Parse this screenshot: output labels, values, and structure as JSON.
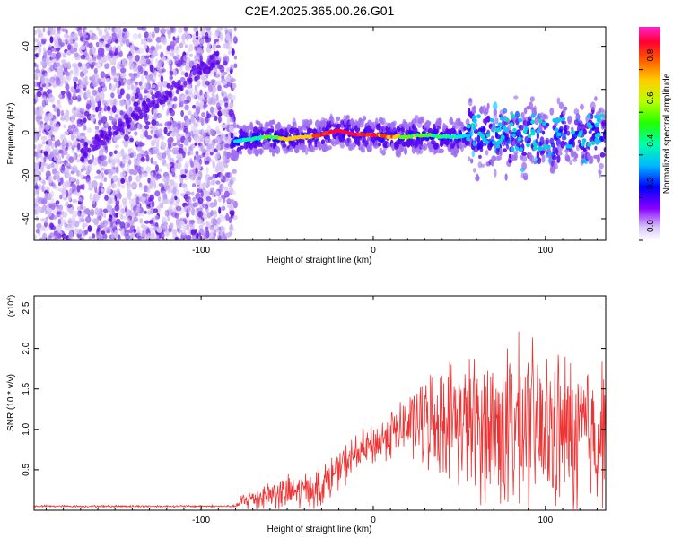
{
  "title": "C2E4.2025.365.00.26.G01",
  "chart_data": [
    {
      "type": "heatmap",
      "xlabel": "Height of straight line (km)",
      "ylabel": "Frequency (Hz)",
      "xlim": [
        -197,
        135
      ],
      "ylim": [
        -50,
        49
      ],
      "xticks": [
        -100,
        0,
        100
      ],
      "yticks": [
        -40,
        -20,
        0,
        20,
        40
      ],
      "colorbar": {
        "label": "Normalized spectral amplitude",
        "ticks": [
          "0.0",
          "0.2",
          "0.4",
          "0.6",
          "0.8"
        ],
        "range": [
          0,
          1
        ]
      },
      "ridge": {
        "x": [
          -80,
          -70,
          -60,
          -50,
          -40,
          -30,
          -20,
          -10,
          0,
          10,
          20,
          30,
          40,
          50,
          55
        ],
        "freq": [
          -4,
          -3,
          -2,
          -3,
          -2,
          -1,
          1,
          -1,
          -1,
          -2,
          -2,
          -1,
          -2,
          -2,
          -1
        ]
      },
      "noise_region_x": [
        -197,
        -80
      ],
      "noise_diagonal": {
        "x_start": -170,
        "x_end": -90,
        "freq_start": -10,
        "freq_end": 35
      }
    },
    {
      "type": "line",
      "xlabel": "Height of straight line (km)",
      "ylabel": "SNR (10 * v/v)",
      "y_multiplier": "(x10",
      "y_multiplier_exp": "4",
      "y_multiplier_close": ")",
      "xlim": [
        -197,
        135
      ],
      "ylim": [
        0,
        2.65
      ],
      "xticks": [
        -100,
        0,
        100
      ],
      "yticks": [
        "0.5",
        "1.0",
        "1.5",
        "2.0",
        "2.5"
      ],
      "ytick_values": [
        0.5,
        1.0,
        1.5,
        2.0,
        2.5
      ],
      "series": [
        {
          "name": "SNR",
          "color": "#ee3333",
          "envelope_x": [
            -197,
            -80,
            -75,
            -60,
            -45,
            -30,
            -20,
            -10,
            0,
            10,
            20,
            30,
            40,
            50,
            60,
            70,
            80,
            90,
            100,
            110,
            120,
            135
          ],
          "envelope_mean": [
            0.05,
            0.05,
            0.12,
            0.2,
            0.22,
            0.3,
            0.5,
            0.7,
            0.8,
            0.95,
            1.05,
            1.1,
            1.15,
            1.1,
            1.05,
            1.0,
            1.0,
            1.0,
            0.95,
            0.95,
            0.95,
            0.95
          ],
          "envelope_spread": [
            0.01,
            0.01,
            0.1,
            0.15,
            0.18,
            0.2,
            0.2,
            0.2,
            0.2,
            0.25,
            0.3,
            0.45,
            0.55,
            0.6,
            0.7,
            0.8,
            0.85,
            0.85,
            0.8,
            0.8,
            0.75,
            0.75
          ]
        }
      ]
    }
  ]
}
